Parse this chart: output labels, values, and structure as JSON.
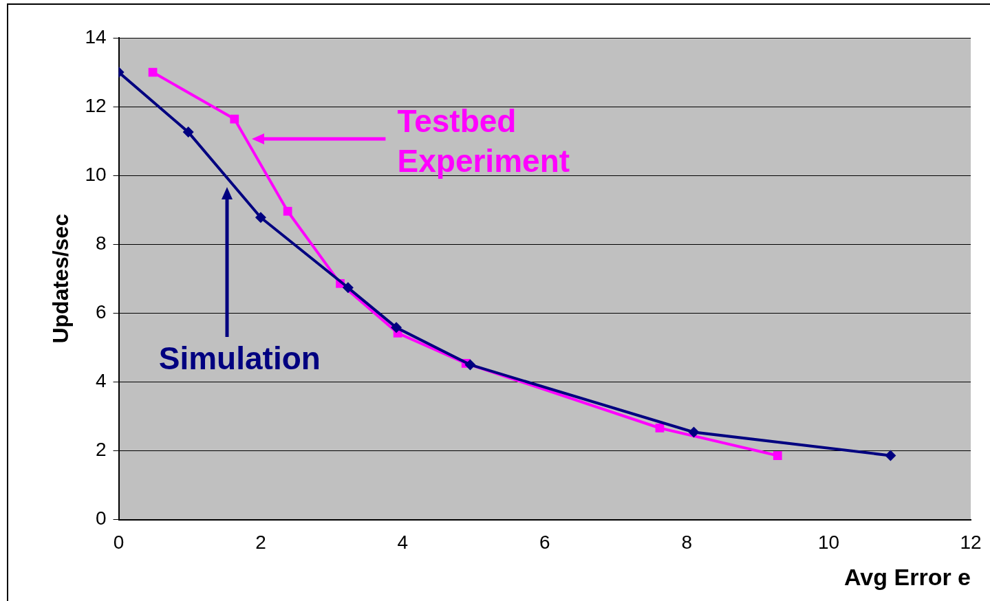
{
  "chart_data": {
    "type": "line",
    "xlabel": "Avg Error e",
    "ylabel": "Updates/sec",
    "xlim": [
      0,
      12
    ],
    "xticks": [
      0,
      2,
      4,
      6,
      8,
      10,
      12
    ],
    "ylim": [
      0,
      14
    ],
    "yticks": [
      0,
      2,
      4,
      6,
      8,
      10,
      12,
      14
    ],
    "grid": "y",
    "series": [
      {
        "name": "Simulation",
        "color": "#000080",
        "marker": "diamond",
        "x": [
          0,
          0.98,
          2.0,
          3.23,
          3.91,
          4.95,
          8.1,
          10.87
        ],
        "values": [
          13.0,
          11.26,
          8.78,
          6.74,
          5.58,
          4.5,
          2.54,
          1.86
        ]
      },
      {
        "name": "Testbed Experiment",
        "color": "#ff00ff",
        "marker": "square",
        "x": [
          0.48,
          1.63,
          2.38,
          3.12,
          3.93,
          4.89,
          7.62,
          9.28
        ],
        "values": [
          13.0,
          11.64,
          8.96,
          6.86,
          5.42,
          4.54,
          2.66,
          1.86
        ]
      }
    ]
  }
}
